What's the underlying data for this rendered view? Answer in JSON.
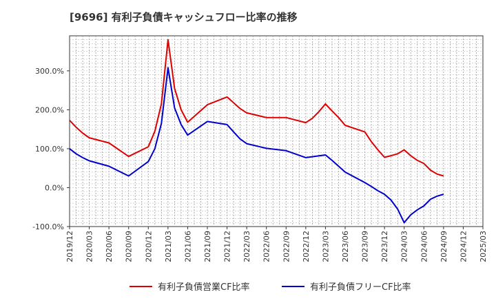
{
  "chart_data": {
    "type": "line",
    "title": "[9696]  有利子負債キャッシュフロー比率の推移",
    "xlabel": "",
    "ylabel": "",
    "ylim": [
      -100,
      390
    ],
    "y_ticks": [
      "-100.0%",
      "0.0%",
      "100.0%",
      "200.0%",
      "300.0%"
    ],
    "y_tick_values": [
      -100,
      0,
      100,
      200,
      300
    ],
    "x_ticks": [
      "2019/12",
      "2020/03",
      "2020/06",
      "2020/09",
      "2020/12",
      "2021/03",
      "2021/06",
      "2021/09",
      "2021/12",
      "2022/03",
      "2022/06",
      "2022/09",
      "2022/12",
      "2023/03",
      "2023/06",
      "2023/09",
      "2023/12",
      "2024/03",
      "2024/06",
      "2024/09",
      "2024/12",
      "2025/03"
    ],
    "grid": true,
    "legend_position": "bottom",
    "series": [
      {
        "name": "有利子負債営業CF比率",
        "color": "#dd0000",
        "points": [
          [
            "2019/12",
            173
          ],
          [
            "2020/01",
            155
          ],
          [
            "2020/02",
            140
          ],
          [
            "2020/03",
            128
          ],
          [
            "2020/06",
            115
          ],
          [
            "2020/09",
            80
          ],
          [
            "2020/12",
            105
          ],
          [
            "2021/01",
            145
          ],
          [
            "2021/02",
            215
          ],
          [
            "2021/03",
            380
          ],
          [
            "2021/04",
            255
          ],
          [
            "2021/05",
            200
          ],
          [
            "2021/06",
            168
          ],
          [
            "2021/09",
            213
          ],
          [
            "2021/12",
            233
          ],
          [
            "2022/01",
            218
          ],
          [
            "2022/02",
            203
          ],
          [
            "2022/03",
            192
          ],
          [
            "2022/06",
            180
          ],
          [
            "2022/09",
            180
          ],
          [
            "2022/12",
            167
          ],
          [
            "2023/01",
            178
          ],
          [
            "2023/02",
            195
          ],
          [
            "2023/03",
            215
          ],
          [
            "2023/04",
            197
          ],
          [
            "2023/05",
            180
          ],
          [
            "2023/06",
            160
          ],
          [
            "2023/09",
            143
          ],
          [
            "2023/10",
            118
          ],
          [
            "2023/11",
            97
          ],
          [
            "2023/12",
            78
          ],
          [
            "2024/01",
            82
          ],
          [
            "2024/02",
            87
          ],
          [
            "2024/03",
            97
          ],
          [
            "2024/04",
            82
          ],
          [
            "2024/05",
            70
          ],
          [
            "2024/06",
            62
          ],
          [
            "2024/07",
            45
          ],
          [
            "2024/08",
            35
          ],
          [
            "2024/09",
            30
          ]
        ]
      },
      {
        "name": "有利子負債フリーCF比率",
        "color": "#0000cc",
        "points": [
          [
            "2019/12",
            100
          ],
          [
            "2020/01",
            87
          ],
          [
            "2020/02",
            77
          ],
          [
            "2020/03",
            69
          ],
          [
            "2020/06",
            55
          ],
          [
            "2020/09",
            30
          ],
          [
            "2020/12",
            67
          ],
          [
            "2021/01",
            100
          ],
          [
            "2021/02",
            165
          ],
          [
            "2021/03",
            308
          ],
          [
            "2021/04",
            205
          ],
          [
            "2021/05",
            162
          ],
          [
            "2021/06",
            135
          ],
          [
            "2021/09",
            170
          ],
          [
            "2021/12",
            162
          ],
          [
            "2022/01",
            143
          ],
          [
            "2022/02",
            125
          ],
          [
            "2022/03",
            113
          ],
          [
            "2022/06",
            101
          ],
          [
            "2022/09",
            95
          ],
          [
            "2022/12",
            77
          ],
          [
            "2023/03",
            84
          ],
          [
            "2023/04",
            70
          ],
          [
            "2023/05",
            55
          ],
          [
            "2023/06",
            40
          ],
          [
            "2023/09",
            13
          ],
          [
            "2023/10",
            3
          ],
          [
            "2023/11",
            -8
          ],
          [
            "2023/12",
            -17
          ],
          [
            "2024/01",
            -32
          ],
          [
            "2024/02",
            -55
          ],
          [
            "2024/03",
            -90
          ],
          [
            "2024/04",
            -70
          ],
          [
            "2024/05",
            -57
          ],
          [
            "2024/06",
            -47
          ],
          [
            "2024/07",
            -30
          ],
          [
            "2024/08",
            -22
          ],
          [
            "2024/09",
            -17
          ]
        ]
      }
    ]
  }
}
